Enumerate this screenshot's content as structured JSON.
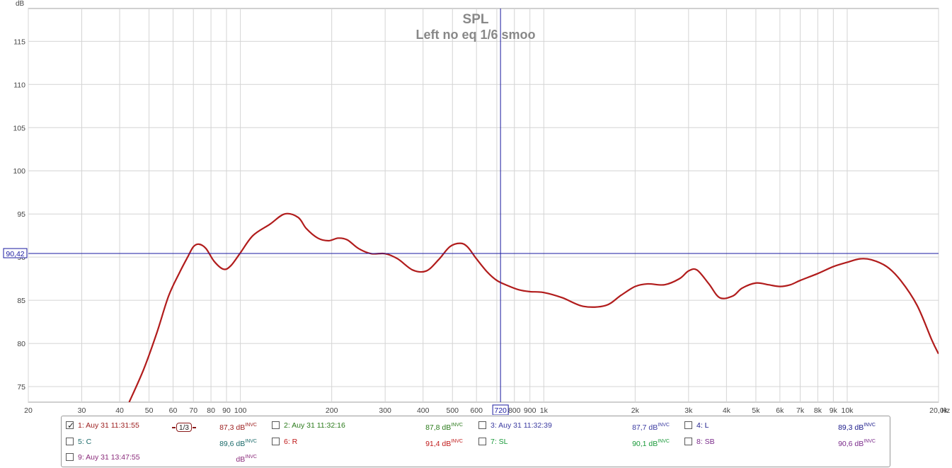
{
  "chart_data": {
    "type": "line",
    "title": "SPL",
    "subtitle": "Left no eq 1/6 smoo",
    "ylabel": "dB",
    "xunit": "Hz",
    "xscale": "log",
    "xlim": [
      20,
      20000
    ],
    "ylim": [
      73.2,
      118.8
    ],
    "grid": true,
    "yticks": [
      "75",
      "80",
      "85",
      "90",
      "95",
      "100",
      "105",
      "110",
      "115"
    ],
    "xticks": [
      "20",
      "30",
      "40",
      "50",
      "60",
      "70",
      "80",
      "90",
      "100",
      "200",
      "300",
      "400",
      "500",
      "600",
      "800",
      "900",
      "1k",
      "2k",
      "3k",
      "4k",
      "5k",
      "6k",
      "7k",
      "8k",
      "9k",
      "10k",
      "20,0k"
    ],
    "cursor": {
      "x_label": "720",
      "y_label": "90,42",
      "x": 720,
      "y": 90.42
    },
    "series": [
      {
        "name": "1: Auy 31 11:31:55",
        "color": "#b11c1c",
        "x": [
          43,
          48,
          53,
          58,
          63,
          67,
          70,
          73,
          77,
          82,
          88,
          93,
          100,
          110,
          125,
          140,
          155,
          165,
          180,
          195,
          210,
          225,
          245,
          270,
          300,
          330,
          370,
          410,
          450,
          490,
          530,
          560,
          600,
          650,
          700,
          760,
          830,
          900,
          1000,
          1150,
          1350,
          1600,
          1800,
          2000,
          2200,
          2500,
          2800,
          3000,
          3200,
          3500,
          3800,
          4200,
          4500,
          5000,
          5500,
          6000,
          6500,
          7000,
          8000,
          9000,
          10000,
          11000,
          12000,
          13500,
          15000,
          17000,
          19000,
          20000
        ],
        "y": [
          73.2,
          77.0,
          81.2,
          85.5,
          88.2,
          90.0,
          91.2,
          91.5,
          91.0,
          89.5,
          88.6,
          89.0,
          90.5,
          92.5,
          93.8,
          95.0,
          94.6,
          93.3,
          92.2,
          91.9,
          92.2,
          92.0,
          91.0,
          90.4,
          90.4,
          89.8,
          88.5,
          88.4,
          89.7,
          91.2,
          91.6,
          91.2,
          89.8,
          88.3,
          87.3,
          86.7,
          86.2,
          86.0,
          85.9,
          85.3,
          84.3,
          84.4,
          85.6,
          86.6,
          86.9,
          86.8,
          87.5,
          88.4,
          88.5,
          86.9,
          85.3,
          85.5,
          86.4,
          87.0,
          86.8,
          86.6,
          86.8,
          87.3,
          88.1,
          88.9,
          89.4,
          89.8,
          89.7,
          88.9,
          87.3,
          84.4,
          80.4,
          78.8
        ]
      }
    ],
    "legend": [
      {
        "label": "1: Auy 31 11:31:55",
        "value": "87,3 dB",
        "sup": "INVC",
        "checked": true,
        "color": "#9b1b1b",
        "smoothing": "1/3"
      },
      {
        "label": "2: Auy 31 11:32:16",
        "value": "87,8 dB",
        "sup": "INVC",
        "checked": false,
        "color": "#2a7a1a"
      },
      {
        "label": "3: Auy 31 11:32:39",
        "value": "87,7 dB",
        "sup": "INVC",
        "checked": false,
        "color": "#3a3aa0"
      },
      {
        "label": "4: L",
        "value": "89,3 dB",
        "sup": "INVC",
        "checked": false,
        "color": "#1a1a8a"
      },
      {
        "label": "5: C",
        "value": "89,6 dB",
        "sup": "INVC",
        "checked": false,
        "color": "#1a6a6a"
      },
      {
        "label": "6: R",
        "value": "91,4 dB",
        "sup": "INVC",
        "checked": false,
        "color": "#c01a1a"
      },
      {
        "label": "7: SL",
        "value": "90,1 dB",
        "sup": "INVC",
        "checked": false,
        "color": "#1a9a3a"
      },
      {
        "label": "8: SB",
        "value": "90,6 dB",
        "sup": "INVC",
        "checked": false,
        "color": "#7a2a8a"
      },
      {
        "label": "9: Auy 31 13:47:55",
        "value": "dB",
        "sup": "INVC",
        "checked": false,
        "color": "#8a2a7a"
      }
    ]
  }
}
